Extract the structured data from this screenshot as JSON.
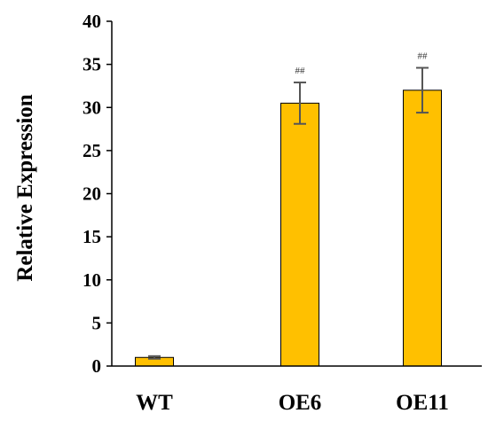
{
  "chart_data": {
    "type": "bar",
    "title": "",
    "xlabel": "",
    "ylabel": "Relative Expression",
    "ylim": [
      0,
      40
    ],
    "yticks": [
      0,
      5,
      10,
      15,
      20,
      25,
      30,
      35,
      40
    ],
    "categories": [
      "WT",
      "OE6",
      "OE11"
    ],
    "values": [
      1.0,
      30.5,
      32.0
    ],
    "errors": [
      0.15,
      2.4,
      2.6
    ],
    "annotations": [
      "",
      "##",
      "##"
    ],
    "bar_color": "#FFC000",
    "bar_edge_color": "#000000",
    "error_color": "#555555",
    "grid": false,
    "legend": "none"
  }
}
